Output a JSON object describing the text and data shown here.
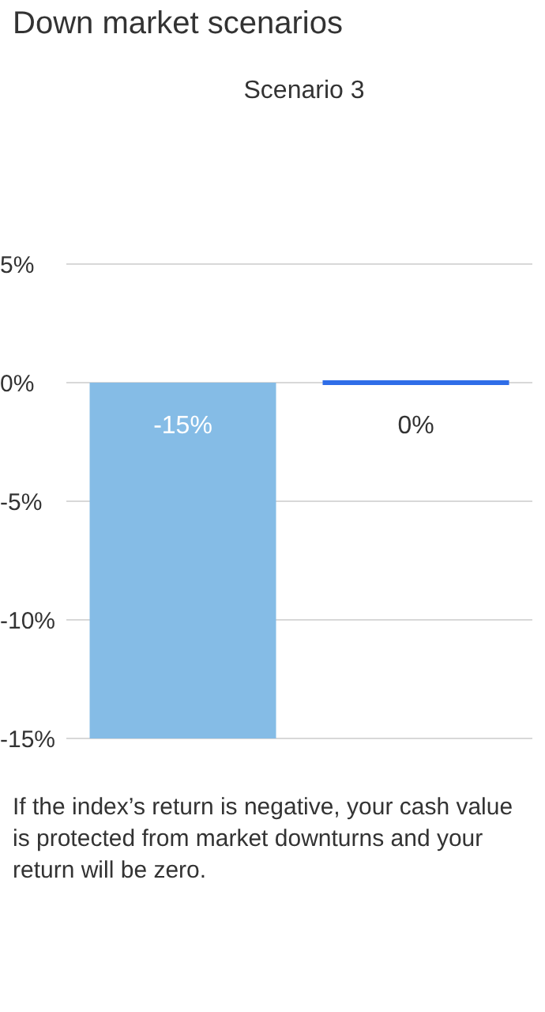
{
  "chart_data": {
    "type": "bar",
    "title": "Down market scenarios",
    "subtitle": "Scenario 3",
    "categories": [
      null,
      null
    ],
    "values": [
      -15,
      0
    ],
    "colors": [
      "#85bce6",
      "#2f6de8"
    ],
    "value_labels": [
      "-15%",
      "0%"
    ],
    "ylim": [
      -15,
      5
    ],
    "yticks": [
      {
        "value": 5,
        "label": "5%"
      },
      {
        "value": 0,
        "label": "0%"
      },
      {
        "value": -5,
        "label": "-5%"
      },
      {
        "value": -10,
        "label": "-10%"
      },
      {
        "value": -15,
        "label": "-15%"
      }
    ],
    "grid": "y",
    "annotations": [
      "If the index’s return is negative, your cash value is protected from market downturns and your return will be zero."
    ]
  }
}
